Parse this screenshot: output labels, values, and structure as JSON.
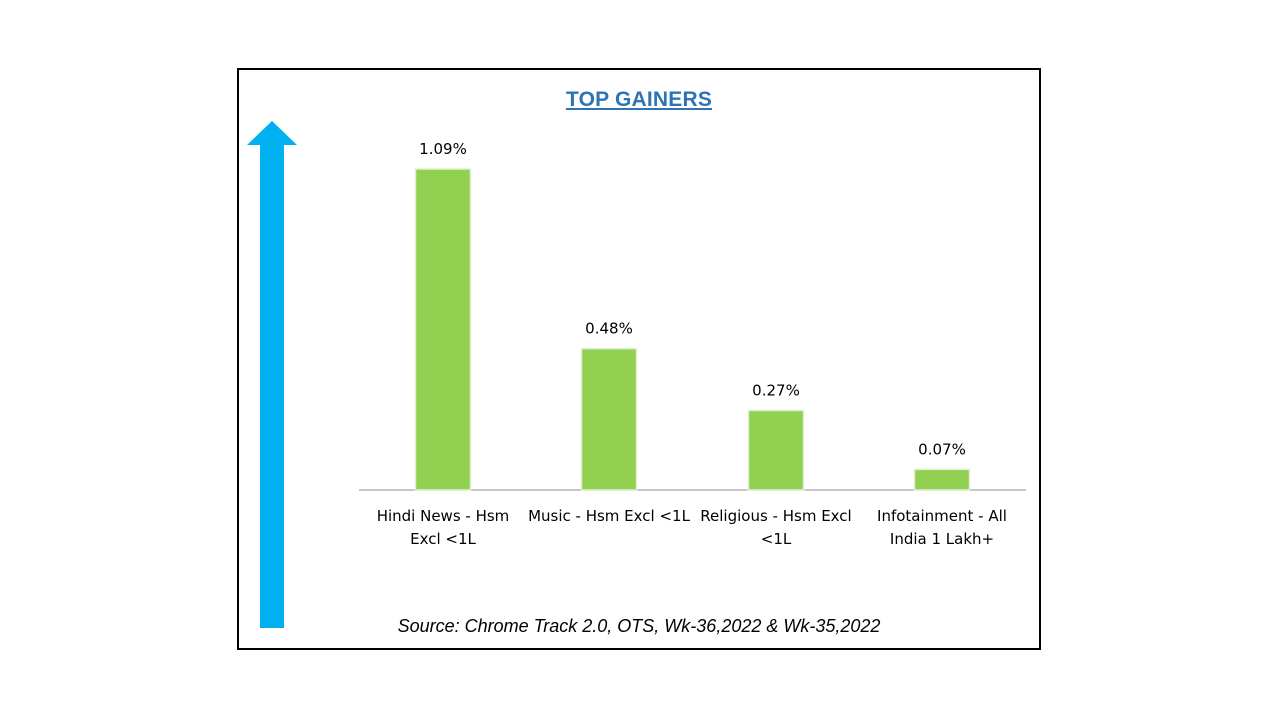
{
  "colors": {
    "bar": "#92D050",
    "arrow": "#00B0F0",
    "title": "#2E74B5",
    "axis": "#A6A6A6",
    "text": "#000000"
  },
  "decorations": {
    "arrow_icon": "up-arrow-icon"
  },
  "source_note": "Source: Chrome Track 2.0, OTS, Wk-36,2022 & Wk-35,2022",
  "chart_data": {
    "type": "bar",
    "title": "TOP GAINERS",
    "xlabel": "",
    "ylabel": "",
    "ylim": [
      0,
      1.09
    ],
    "grid": false,
    "categories": [
      [
        "Hindi News - Hsm",
        "Excl <1L"
      ],
      [
        "Music - Hsm Excl <1L"
      ],
      [
        "Religious - Hsm Excl",
        "<1L"
      ],
      [
        "Infotainment - All",
        "India 1 Lakh+"
      ]
    ],
    "values": [
      1.09,
      0.48,
      0.27,
      0.07
    ],
    "data_labels": [
      "1.09%",
      "0.48%",
      "0.27%",
      "0.07%"
    ],
    "unit": "%"
  }
}
